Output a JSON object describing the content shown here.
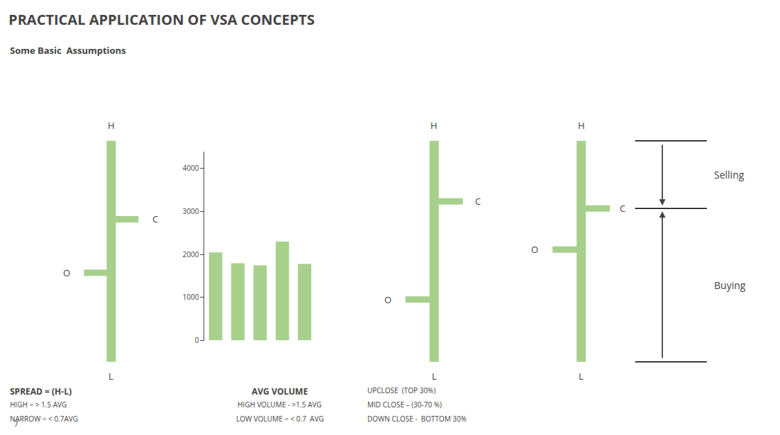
{
  "chart_data": {
    "type": "bar",
    "title": "PRACTICAL APPLICATION OF VSA CONCEPTS",
    "subtitle": "Some Basic  Assumptions",
    "categories": [
      null,
      null,
      null,
      null,
      null
    ],
    "values": [
      2050,
      1800,
      1750,
      2300,
      1780
    ],
    "color": "#a8d08d",
    "ylim": [
      0,
      4400
    ],
    "yticks": [
      0,
      1000,
      2000,
      3000,
      4000
    ],
    "grid": false,
    "tick_labels": "y",
    "annotations": [
      "H",
      "L",
      "O",
      "C",
      "SPREAD = (H-L)",
      "HIGH = > 1.5 AVG",
      "NARROW = < 0.7AVG",
      "7",
      "AVG VOLUME",
      "HIGH VOLUME - >1.5 AVG",
      "LOW VOLUME = < 0.7  AVG",
      "H",
      "L",
      "O",
      "C",
      "UPCLOSE  (TOP 30%)",
      "MID CLOSE – (30-70 %)",
      "DOWN CLOSE -  BOTTOM 30%",
      "H",
      "L",
      "O",
      "C",
      "Selling",
      "Buying"
    ]
  }
}
